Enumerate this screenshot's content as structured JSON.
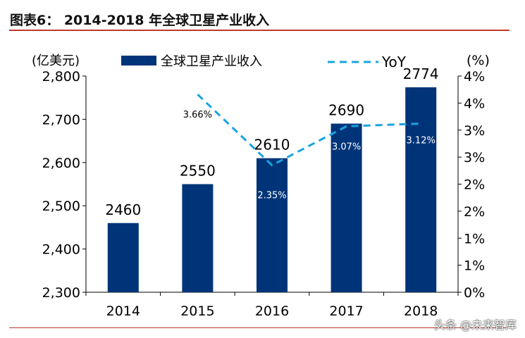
{
  "title": "图表6：  2014-2018 年全球卫星产业收入",
  "watermark": "头条 @未来智库",
  "chart_data": {
    "type": "bar+line",
    "categories": [
      "2014",
      "2015",
      "2016",
      "2017",
      "2018"
    ],
    "series": [
      {
        "name": "全球卫星产业收入",
        "type": "bar",
        "axis": "left",
        "values": [
          2460,
          2550,
          2610,
          2690,
          2774
        ],
        "labels": [
          "2460",
          "2550",
          "2610",
          "2690",
          "2774"
        ],
        "color": "#003478"
      },
      {
        "name": "YoY",
        "type": "line",
        "style": "dashed",
        "axis": "right",
        "values": [
          null,
          3.66,
          2.35,
          3.07,
          3.12
        ],
        "labels": [
          "",
          "3.66%",
          "2.35%",
          "3.07%",
          "3.12%"
        ],
        "color": "#1aa3e0"
      }
    ],
    "ylabel": "(亿美元)",
    "ylim": [
      2300,
      2800
    ],
    "yticks": [
      "2,300",
      "2,400",
      "2,500",
      "2,600",
      "2,700",
      "2,800"
    ],
    "y2label": "(%)",
    "y2lim": [
      0,
      4
    ],
    "y2ticks": [
      "0%",
      "1%",
      "1%",
      "2%",
      "2%",
      "3%",
      "3%",
      "4%",
      "4%"
    ],
    "legend": "top",
    "grid": false
  }
}
